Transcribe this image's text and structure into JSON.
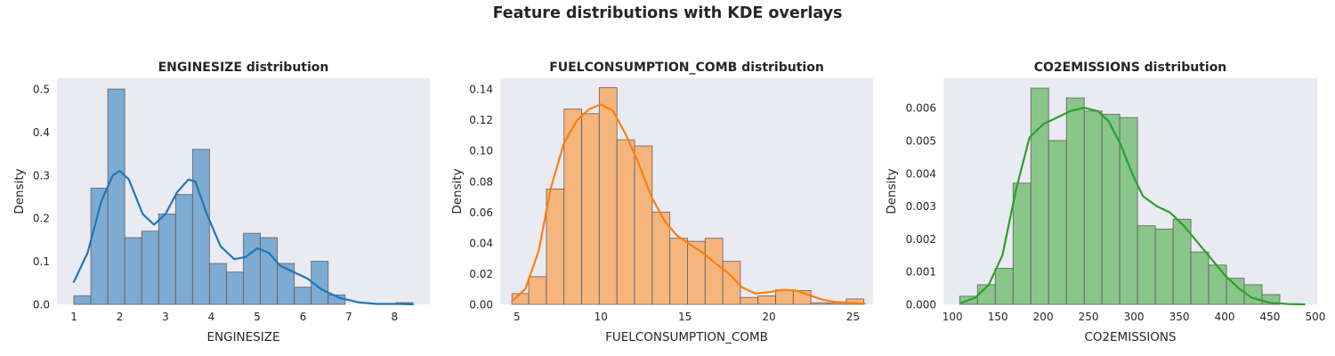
{
  "suptitle": "Feature distributions with KDE overlays",
  "chart_data": [
    {
      "type": "bar",
      "title": "ENGINESIZE distribution",
      "xlabel": "ENGINESIZE",
      "ylabel": "Density",
      "xlim": [
        0.63,
        8.77
      ],
      "ylim": [
        0,
        0.525
      ],
      "xticks": [
        1,
        2,
        3,
        4,
        5,
        6,
        7,
        8
      ],
      "yticks": [
        0.0,
        0.1,
        0.2,
        0.3,
        0.4,
        0.5
      ],
      "ytick_labels": [
        "0.0",
        "0.1",
        "0.2",
        "0.3",
        "0.4",
        "0.5"
      ],
      "grid": false,
      "color": "#1f77b4",
      "bar_fill": "#7eabd2",
      "bins": [
        [
          1.0,
          1.37,
          0.02
        ],
        [
          1.37,
          1.74,
          0.27
        ],
        [
          1.74,
          2.11,
          0.5
        ],
        [
          2.11,
          2.48,
          0.155
        ],
        [
          2.48,
          2.85,
          0.17
        ],
        [
          2.85,
          3.22,
          0.21
        ],
        [
          3.22,
          3.59,
          0.255
        ],
        [
          3.59,
          3.96,
          0.36
        ],
        [
          3.96,
          4.33,
          0.095
        ],
        [
          4.33,
          4.7,
          0.075
        ],
        [
          4.7,
          5.07,
          0.165
        ],
        [
          5.07,
          5.44,
          0.155
        ],
        [
          5.44,
          5.81,
          0.095
        ],
        [
          5.81,
          6.18,
          0.04
        ],
        [
          6.18,
          6.55,
          0.1
        ],
        [
          6.55,
          6.92,
          0.022
        ],
        [
          6.92,
          7.29,
          0
        ],
        [
          7.29,
          7.66,
          0
        ],
        [
          7.66,
          8.03,
          0
        ],
        [
          8.03,
          8.4,
          0.004
        ]
      ],
      "kde": [
        [
          1.0,
          0.052
        ],
        [
          1.3,
          0.12
        ],
        [
          1.6,
          0.24
        ],
        [
          1.85,
          0.3
        ],
        [
          2.0,
          0.31
        ],
        [
          2.2,
          0.29
        ],
        [
          2.5,
          0.21
        ],
        [
          2.75,
          0.185
        ],
        [
          3.0,
          0.21
        ],
        [
          3.25,
          0.26
        ],
        [
          3.5,
          0.29
        ],
        [
          3.65,
          0.285
        ],
        [
          3.9,
          0.21
        ],
        [
          4.2,
          0.135
        ],
        [
          4.5,
          0.105
        ],
        [
          4.75,
          0.11
        ],
        [
          5.0,
          0.13
        ],
        [
          5.25,
          0.12
        ],
        [
          5.5,
          0.09
        ],
        [
          5.8,
          0.075
        ],
        [
          6.1,
          0.06
        ],
        [
          6.4,
          0.035
        ],
        [
          6.8,
          0.015
        ],
        [
          7.2,
          0.005
        ],
        [
          7.6,
          0.001
        ],
        [
          8.1,
          0.001
        ],
        [
          8.4,
          0.0
        ]
      ]
    },
    {
      "type": "bar",
      "title": "FUELCONSUMPTION_COMB distribution",
      "xlabel": "FUELCONSUMPTION_COMB",
      "ylabel": "Density",
      "xlim": [
        4.0,
        26.2
      ],
      "ylim": [
        0,
        0.147
      ],
      "xticks": [
        5,
        10,
        15,
        20,
        25
      ],
      "yticks": [
        0.0,
        0.02,
        0.04,
        0.06,
        0.08,
        0.1,
        0.12,
        0.14
      ],
      "ytick_labels": [
        "0.00",
        "0.02",
        "0.04",
        "0.06",
        "0.08",
        "0.10",
        "0.12",
        "0.14"
      ],
      "grid": false,
      "color": "#ff7f0e",
      "bar_fill": "#f5b57d",
      "bins": [
        [
          4.7,
          5.7,
          0.007
        ],
        [
          5.7,
          6.75,
          0.018
        ],
        [
          6.75,
          7.8,
          0.075
        ],
        [
          7.8,
          8.85,
          0.127
        ],
        [
          8.85,
          9.9,
          0.124
        ],
        [
          9.9,
          10.95,
          0.141
        ],
        [
          10.95,
          12.0,
          0.107
        ],
        [
          12.0,
          13.05,
          0.103
        ],
        [
          13.05,
          14.1,
          0.06
        ],
        [
          14.1,
          15.15,
          0.043
        ],
        [
          15.15,
          16.2,
          0.041
        ],
        [
          16.2,
          17.25,
          0.043
        ],
        [
          17.25,
          18.3,
          0.028
        ],
        [
          18.3,
          19.35,
          0.0045
        ],
        [
          19.35,
          20.4,
          0.0055
        ],
        [
          20.4,
          21.45,
          0.0095
        ],
        [
          21.45,
          22.5,
          0.009
        ],
        [
          22.5,
          23.55,
          0.001
        ],
        [
          23.55,
          24.6,
          0.001
        ],
        [
          24.6,
          25.65,
          0.0035
        ]
      ],
      "kde": [
        [
          4.7,
          0.002
        ],
        [
          5.5,
          0.01
        ],
        [
          6.3,
          0.035
        ],
        [
          7.0,
          0.075
        ],
        [
          7.8,
          0.105
        ],
        [
          8.6,
          0.12
        ],
        [
          9.3,
          0.127
        ],
        [
          10.0,
          0.13
        ],
        [
          10.7,
          0.126
        ],
        [
          11.5,
          0.11
        ],
        [
          12.3,
          0.09
        ],
        [
          13.0,
          0.07
        ],
        [
          13.8,
          0.054
        ],
        [
          14.5,
          0.045
        ],
        [
          15.3,
          0.039
        ],
        [
          16.0,
          0.034
        ],
        [
          16.8,
          0.027
        ],
        [
          17.6,
          0.02
        ],
        [
          18.4,
          0.011
        ],
        [
          19.2,
          0.007
        ],
        [
          20.0,
          0.008
        ],
        [
          20.8,
          0.0095
        ],
        [
          21.6,
          0.009
        ],
        [
          22.4,
          0.006
        ],
        [
          23.2,
          0.003
        ],
        [
          24.0,
          0.0015
        ],
        [
          25.0,
          0.001
        ],
        [
          25.7,
          0.0005
        ]
      ]
    },
    {
      "type": "bar",
      "title": "CO2EMISSIONS distribution",
      "xlabel": "CO2EMISSIONS",
      "ylabel": "Density",
      "xlim": [
        90,
        502
      ],
      "ylim": [
        0,
        0.0069
      ],
      "xticks": [
        100,
        150,
        200,
        250,
        300,
        350,
        400,
        450,
        500
      ],
      "yticks": [
        0.0,
        0.001,
        0.002,
        0.003,
        0.004,
        0.005,
        0.006
      ],
      "ytick_labels": [
        "0.000",
        "0.001",
        "0.002",
        "0.003",
        "0.004",
        "0.005",
        "0.006"
      ],
      "grid": false,
      "color": "#2ca02c",
      "bar_fill": "#8ac58a",
      "bins": [
        [
          108,
          127.6,
          0.00025
        ],
        [
          127.6,
          147.2,
          0.0006
        ],
        [
          147.2,
          166.8,
          0.0011
        ],
        [
          166.8,
          186.4,
          0.0037
        ],
        [
          186.4,
          206.0,
          0.0066
        ],
        [
          206.0,
          225.6,
          0.005
        ],
        [
          225.6,
          245.2,
          0.0063
        ],
        [
          245.2,
          264.8,
          0.0059
        ],
        [
          264.8,
          284.4,
          0.0058
        ],
        [
          284.4,
          304.0,
          0.0057
        ],
        [
          304.0,
          323.6,
          0.0024
        ],
        [
          323.6,
          343.2,
          0.0023
        ],
        [
          343.2,
          362.8,
          0.0026
        ],
        [
          362.8,
          382.4,
          0.0016
        ],
        [
          382.4,
          402.0,
          0.0012
        ],
        [
          402.0,
          421.6,
          0.0008
        ],
        [
          421.6,
          441.2,
          0.0006
        ],
        [
          441.2,
          460.8,
          0.0003
        ],
        [
          460.8,
          480.4,
          0.0
        ],
        [
          480.4,
          488,
          0.0
        ]
      ],
      "kde": [
        [
          110,
          5e-05
        ],
        [
          125,
          0.0002
        ],
        [
          140,
          0.0006
        ],
        [
          155,
          0.0015
        ],
        [
          170,
          0.0035
        ],
        [
          185,
          0.0051
        ],
        [
          200,
          0.0055
        ],
        [
          215,
          0.0057
        ],
        [
          230,
          0.0059
        ],
        [
          245,
          0.006
        ],
        [
          260,
          0.0059
        ],
        [
          272,
          0.0056
        ],
        [
          285,
          0.0049
        ],
        [
          298,
          0.004
        ],
        [
          310,
          0.0033
        ],
        [
          325,
          0.003
        ],
        [
          340,
          0.0028
        ],
        [
          355,
          0.0024
        ],
        [
          370,
          0.0019
        ],
        [
          385,
          0.0014
        ],
        [
          400,
          0.0009
        ],
        [
          415,
          0.0005
        ],
        [
          430,
          0.0002
        ],
        [
          450,
          5e-05
        ],
        [
          470,
          1e-05
        ],
        [
          488,
          0.0
        ]
      ]
    }
  ]
}
